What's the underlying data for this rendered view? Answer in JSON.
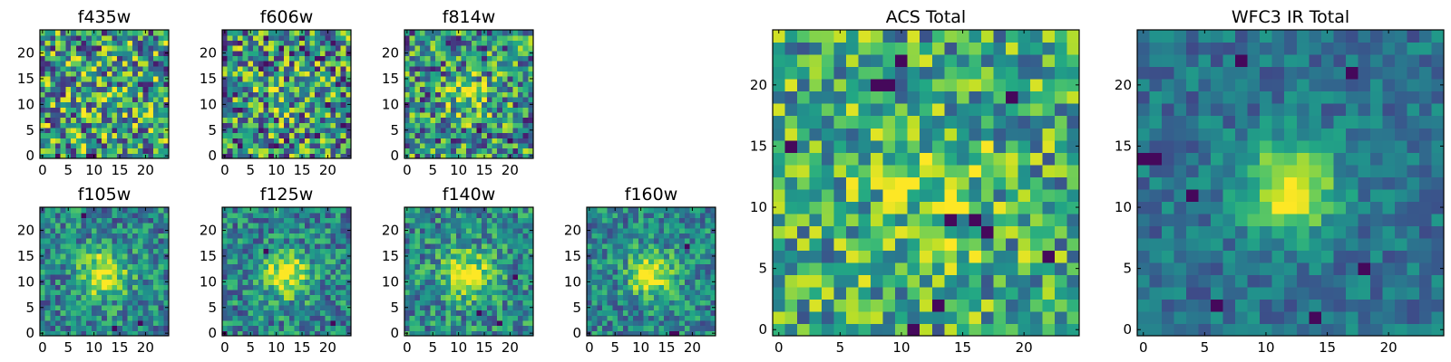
{
  "chart_data": [
    {
      "type": "heatmap",
      "title": "f435w",
      "colormap": "viridis",
      "grid_size": [
        25,
        25
      ],
      "xlim": [
        -0.5,
        24.5
      ],
      "ylim": [
        -0.5,
        24.5
      ],
      "xticks": [
        0,
        5,
        10,
        15,
        20
      ],
      "yticks": [
        0,
        5,
        10,
        15,
        20
      ],
      "xtick_labels": [
        "0",
        "5",
        "10",
        "15",
        "20"
      ],
      "ytick_labels": [
        "0",
        "5",
        "10",
        "15",
        "20"
      ],
      "seed": 11,
      "peak": 0.1,
      "noise": 0.95,
      "sigma": 3.5,
      "base": 0.55,
      "lows": [
        [
          10,
          0
        ],
        [
          9,
          0
        ],
        [
          3,
          0
        ]
      ]
    },
    {
      "type": "heatmap",
      "title": "f606w",
      "colormap": "viridis",
      "grid_size": [
        25,
        25
      ],
      "xlim": [
        -0.5,
        24.5
      ],
      "ylim": [
        -0.5,
        24.5
      ],
      "xticks": [
        0,
        5,
        10,
        15,
        20
      ],
      "yticks": [
        0,
        5,
        10,
        15,
        20
      ],
      "xtick_labels": [
        "0",
        "5",
        "10",
        "15",
        "20"
      ],
      "ytick_labels": [
        "0",
        "5",
        "10",
        "15",
        "20"
      ],
      "seed": 23,
      "peak": 0.12,
      "noise": 0.95,
      "sigma": 3.5,
      "base": 0.5,
      "lows": []
    },
    {
      "type": "heatmap",
      "title": "f814w",
      "colormap": "viridis",
      "grid_size": [
        25,
        25
      ],
      "xlim": [
        -0.5,
        24.5
      ],
      "ylim": [
        -0.5,
        24.5
      ],
      "xticks": [
        0,
        5,
        10,
        15,
        20
      ],
      "yticks": [
        0,
        5,
        10,
        15,
        20
      ],
      "xtick_labels": [
        "0",
        "5",
        "10",
        "15",
        "20"
      ],
      "ytick_labels": [
        "0",
        "5",
        "10",
        "15",
        "20"
      ],
      "seed": 37,
      "peak": 0.35,
      "noise": 0.85,
      "sigma": 2.8,
      "base": 0.5,
      "lows": [
        [
          14,
          5
        ],
        [
          20,
          3
        ]
      ]
    },
    {
      "type": "heatmap",
      "title": "f105w",
      "colormap": "viridis",
      "grid_size": [
        25,
        25
      ],
      "xlim": [
        -0.5,
        24.5
      ],
      "ylim": [
        -0.5,
        24.5
      ],
      "xticks": [
        0,
        5,
        10,
        15,
        20
      ],
      "yticks": [
        0,
        5,
        10,
        15,
        20
      ],
      "xtick_labels": [
        "0",
        "5",
        "10",
        "15",
        "20"
      ],
      "ytick_labels": [
        "0",
        "5",
        "10",
        "15",
        "20"
      ],
      "seed": 41,
      "peak": 0.55,
      "noise": 0.55,
      "sigma": 3.2,
      "base": 0.45,
      "lows": [
        [
          8,
          23
        ],
        [
          19,
          2
        ],
        [
          14,
          1
        ]
      ]
    },
    {
      "type": "heatmap",
      "title": "f125w",
      "colormap": "viridis",
      "grid_size": [
        25,
        25
      ],
      "xlim": [
        -0.5,
        24.5
      ],
      "ylim": [
        -0.5,
        24.5
      ],
      "xticks": [
        0,
        5,
        10,
        15,
        20
      ],
      "yticks": [
        0,
        5,
        10,
        15,
        20
      ],
      "xtick_labels": [
        "0",
        "5",
        "10",
        "15",
        "20"
      ],
      "ytick_labels": [
        "0",
        "5",
        "10",
        "15",
        "20"
      ],
      "seed": 53,
      "peak": 0.55,
      "noise": 0.55,
      "sigma": 3.2,
      "base": 0.45,
      "lows": [
        [
          0,
          0
        ],
        [
          21,
          2
        ],
        [
          8,
          16
        ]
      ]
    },
    {
      "type": "heatmap",
      "title": "f140w",
      "colormap": "viridis",
      "grid_size": [
        25,
        25
      ],
      "xlim": [
        -0.5,
        24.5
      ],
      "ylim": [
        -0.5,
        24.5
      ],
      "xticks": [
        0,
        5,
        10,
        15,
        20
      ],
      "yticks": [
        0,
        5,
        10,
        15,
        20
      ],
      "xtick_labels": [
        "0",
        "5",
        "10",
        "15",
        "20"
      ],
      "ytick_labels": [
        "0",
        "5",
        "10",
        "15",
        "20"
      ],
      "seed": 67,
      "peak": 0.5,
      "noise": 0.55,
      "sigma": 3.2,
      "base": 0.48,
      "lows": [
        [
          14,
          4
        ],
        [
          18,
          2
        ],
        [
          21,
          11
        ]
      ]
    },
    {
      "type": "heatmap",
      "title": "f160w",
      "colormap": "viridis",
      "grid_size": [
        25,
        25
      ],
      "xlim": [
        -0.5,
        24.5
      ],
      "ylim": [
        -0.5,
        24.5
      ],
      "xticks": [
        0,
        5,
        10,
        15,
        20
      ],
      "yticks": [
        0,
        5,
        10,
        15,
        20
      ],
      "xtick_labels": [
        "0",
        "5",
        "10",
        "15",
        "20"
      ],
      "ytick_labels": [
        "0",
        "5",
        "10",
        "15",
        "20"
      ],
      "seed": 79,
      "peak": 0.6,
      "noise": 0.5,
      "sigma": 3.0,
      "base": 0.45,
      "lows": [
        [
          16,
          0
        ],
        [
          17,
          0
        ],
        [
          19,
          17
        ]
      ]
    },
    {
      "type": "heatmap",
      "title": "ACS Total",
      "colormap": "viridis",
      "grid_size": [
        25,
        25
      ],
      "xlim": [
        -0.5,
        24.5
      ],
      "ylim": [
        -0.5,
        24.5
      ],
      "xticks": [
        0,
        5,
        10,
        15,
        20
      ],
      "yticks": [
        0,
        5,
        10,
        15,
        20
      ],
      "xtick_labels": [
        "0",
        "5",
        "10",
        "15",
        "20"
      ],
      "ytick_labels": [
        "0",
        "5",
        "10",
        "15",
        "20"
      ],
      "seed": 97,
      "peak": 0.18,
      "noise": 0.7,
      "sigma": 4.0,
      "base": 0.6,
      "lows": [
        [
          8,
          20
        ],
        [
          9,
          20
        ],
        [
          19,
          19
        ],
        [
          14,
          9
        ],
        [
          16,
          9
        ],
        [
          17,
          8
        ],
        [
          22,
          6
        ],
        [
          11,
          0
        ],
        [
          13,
          2
        ],
        [
          10,
          22
        ],
        [
          1,
          15
        ]
      ]
    },
    {
      "type": "heatmap",
      "title": "WFC3 IR Total",
      "colormap": "viridis",
      "grid_size": [
        25,
        25
      ],
      "xlim": [
        -0.5,
        24.5
      ],
      "ylim": [
        -0.5,
        24.5
      ],
      "xticks": [
        0,
        5,
        10,
        15,
        20
      ],
      "yticks": [
        0,
        5,
        10,
        15,
        20
      ],
      "xtick_labels": [
        "0",
        "5",
        "10",
        "15",
        "20"
      ],
      "ytick_labels": [
        "0",
        "5",
        "10",
        "15",
        "20"
      ],
      "seed": 113,
      "peak": 0.65,
      "noise": 0.32,
      "sigma": 2.6,
      "base": 0.38,
      "lows": [
        [
          0,
          14
        ],
        [
          1,
          14
        ],
        [
          4,
          11
        ],
        [
          6,
          2
        ],
        [
          14,
          1
        ],
        [
          18,
          5
        ],
        [
          8,
          22
        ],
        [
          17,
          21
        ]
      ]
    }
  ]
}
